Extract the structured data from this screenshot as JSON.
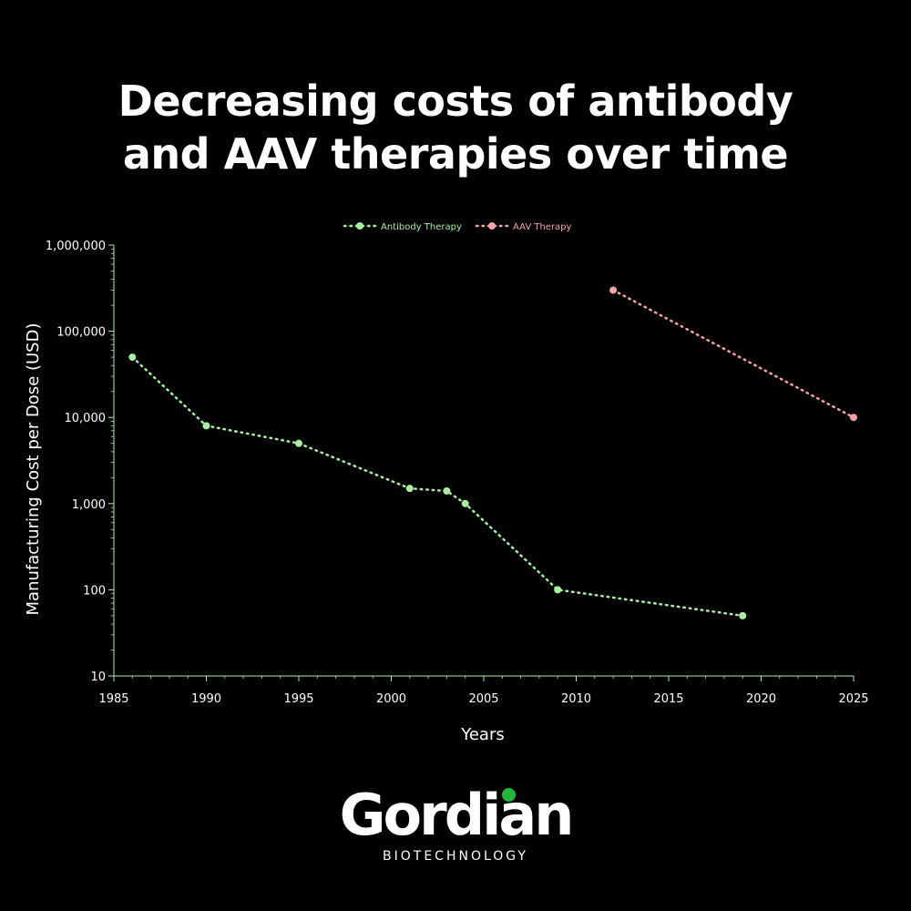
{
  "title": {
    "line1": "Decreasing costs of antibody",
    "line2": "and AAV therapies over time"
  },
  "chart_data": {
    "type": "line",
    "title": "Decreasing costs of antibody and AAV therapies over time",
    "xlabel": "Years",
    "ylabel": "Manufacturing Cost per Dose (USD)",
    "xlim": [
      1985,
      2025
    ],
    "ylim": [
      10,
      1000000
    ],
    "yscale": "log",
    "x_ticks": [
      1985,
      1990,
      1995,
      2000,
      2005,
      2010,
      2015,
      2020,
      2025
    ],
    "y_ticks": [
      10,
      100,
      1000,
      10000,
      100000,
      1000000
    ],
    "y_tick_labels": [
      "10",
      "100",
      "1,000",
      "10,000",
      "100,000",
      "1,000,000"
    ],
    "legend_position": "top-center",
    "series": [
      {
        "name": "Antibody Therapy",
        "color": "#a8f0a0",
        "points": [
          {
            "x": 1986,
            "y": 50000
          },
          {
            "x": 1990,
            "y": 8000
          },
          {
            "x": 1995,
            "y": 5000
          },
          {
            "x": 2001,
            "y": 1500
          },
          {
            "x": 2003,
            "y": 1400
          },
          {
            "x": 2004,
            "y": 1000
          },
          {
            "x": 2009,
            "y": 100
          },
          {
            "x": 2019,
            "y": 50
          }
        ]
      },
      {
        "name": "AAV Therapy",
        "color": "#f4a3a8",
        "points": [
          {
            "x": 2012,
            "y": 300000
          },
          {
            "x": 2025,
            "y": 10000
          }
        ]
      }
    ]
  },
  "colors": {
    "background": "#000000",
    "axis": "#a8f0a0",
    "text": "#ffffff",
    "brand_green": "#1fb83a"
  },
  "logo": {
    "word": "Gordian",
    "subtitle": "BIOTECHNOLOGY"
  }
}
